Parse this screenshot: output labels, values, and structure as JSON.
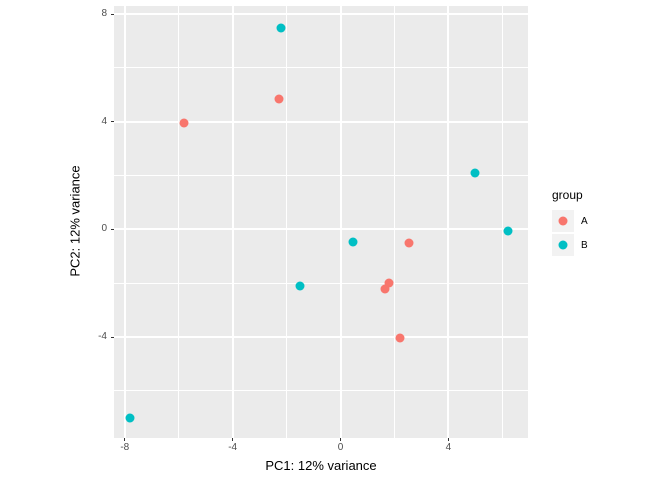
{
  "chart_data": {
    "type": "scatter",
    "title": "",
    "xlabel": "PC1: 12% variance",
    "ylabel": "PC2: 12% variance",
    "xlim": [
      -8.4,
      6.95
    ],
    "ylim": [
      -7.75,
      8.3
    ],
    "x_major_ticks": [
      -8,
      -4,
      0,
      4
    ],
    "x_minor_ticks": [
      -6,
      -2,
      2,
      6
    ],
    "y_major_ticks": [
      8,
      4,
      0,
      -4
    ],
    "y_minor_ticks": [
      6,
      2,
      -2,
      -6
    ],
    "grid": "major and minor white gridlines on grey panel",
    "legend": {
      "title": "group",
      "position": "right"
    },
    "series": [
      {
        "name": "A",
        "color": "#F8766D",
        "points": [
          [
            -5.8,
            3.95
          ],
          [
            -2.3,
            4.85
          ],
          [
            2.55,
            -0.5
          ],
          [
            1.8,
            -2.0
          ],
          [
            1.65,
            -2.2
          ],
          [
            2.2,
            -4.05
          ]
        ]
      },
      {
        "name": "B",
        "color": "#00BFC4",
        "points": [
          [
            -2.2,
            7.5
          ],
          [
            0.45,
            -0.45
          ],
          [
            5.0,
            2.1
          ],
          [
            6.2,
            -0.05
          ],
          [
            -1.5,
            -2.1
          ],
          [
            -7.8,
            -7.0
          ]
        ]
      }
    ]
  },
  "colors": {
    "panel_background": "#EBEBEB",
    "gridline": "#FFFFFF",
    "tick_label": "#4D4D4D",
    "tick_mark": "#333333",
    "axis_title": "#000000",
    "legend_key_background": "#F2F2F2",
    "group_a": "#F8766D",
    "group_b": "#00BFC4"
  }
}
